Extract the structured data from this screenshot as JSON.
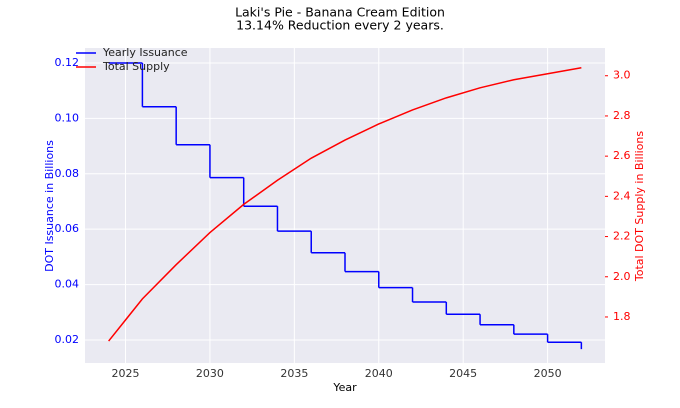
{
  "chart_data": {
    "type": "line",
    "title": "Laki's Pie - Banana Cream Edition",
    "subtitle": "13.14% Reduction every 2 years.",
    "x_label": "Year",
    "y_label": "DOT Issuance in Billions",
    "y2_label": "Total DOT Supply in Billions",
    "xlim": [
      2022.6,
      2053.4
    ],
    "xticks": [
      2025,
      2030,
      2035,
      2040,
      2045,
      2050
    ],
    "ylim": [
      0.0117,
      0.1254
    ],
    "yticks": [
      0.02,
      0.04,
      0.06,
      0.08,
      0.1,
      0.12
    ],
    "y2lim": [
      1.571,
      3.138
    ],
    "y2ticks": [
      1.8,
      2.0,
      2.2,
      2.4,
      2.6,
      2.8,
      3.0
    ],
    "grid": true,
    "legend": "upper left",
    "series": [
      {
        "name": "Yearly Issuance",
        "color": "#0000ff",
        "drawstyle": "steps-post",
        "x": [
          2024,
          2026,
          2028,
          2030,
          2032,
          2034,
          2036,
          2038,
          2040,
          2042,
          2044,
          2046,
          2048,
          2050,
          2052
        ],
        "values": [
          0.12,
          0.1042,
          0.0905,
          0.0786,
          0.0683,
          0.0593,
          0.0515,
          0.0447,
          0.0389,
          0.0337,
          0.0293,
          0.0255,
          0.0221,
          0.0192,
          0.0167
        ]
      },
      {
        "name": "Total Supply",
        "color": "#ff0000",
        "axis": "y2",
        "x": [
          2024,
          2026,
          2028,
          2030,
          2032,
          2034,
          2036,
          2038,
          2040,
          2042,
          2044,
          2046,
          2048,
          2050,
          2052
        ],
        "values": [
          1.68,
          1.89,
          2.06,
          2.22,
          2.36,
          2.48,
          2.59,
          2.68,
          2.76,
          2.83,
          2.89,
          2.94,
          2.98,
          3.01,
          3.04
        ]
      }
    ]
  }
}
